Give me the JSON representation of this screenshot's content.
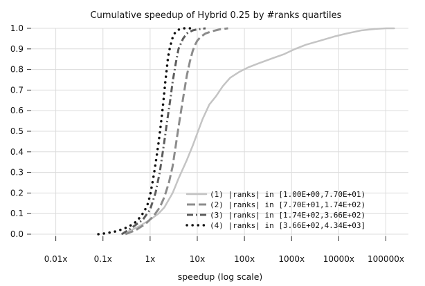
{
  "chart_data": {
    "type": "line",
    "title": "Cumulative speedup of Hybrid 0.25 by #ranks quartiles",
    "xlabel": "speedup (log scale)",
    "ylabel": "",
    "xscale": "log",
    "xlim": [
      0.003,
      300000
    ],
    "ylim": [
      0,
      1.0
    ],
    "grid": true,
    "legend_position": "bottom-right",
    "x_ticks": [
      {
        "value": 0.01,
        "label": "0.01x"
      },
      {
        "value": 0.1,
        "label": "0.1x"
      },
      {
        "value": 1,
        "label": "1x"
      },
      {
        "value": 10,
        "label": "10x"
      },
      {
        "value": 100,
        "label": "100x"
      },
      {
        "value": 1000,
        "label": "1000x"
      },
      {
        "value": 10000,
        "label": "10000x"
      },
      {
        "value": 100000,
        "label": "100000x"
      }
    ],
    "y_ticks": [
      {
        "value": 0.0,
        "label": "0.0"
      },
      {
        "value": 0.1,
        "label": "0.1"
      },
      {
        "value": 0.2,
        "label": "0.2"
      },
      {
        "value": 0.3,
        "label": "0.3"
      },
      {
        "value": 0.4,
        "label": "0.4"
      },
      {
        "value": 0.5,
        "label": "0.5"
      },
      {
        "value": 0.6,
        "label": "0.6"
      },
      {
        "value": 0.7,
        "label": "0.7"
      },
      {
        "value": 0.8,
        "label": "0.8"
      },
      {
        "value": 0.9,
        "label": "0.9"
      },
      {
        "value": 1.0,
        "label": "1.0"
      }
    ],
    "series": [
      {
        "name": "(1) |ranks| in [1.00E+00,7.70E+01)",
        "style": "solid",
        "color": "#c4c4c4",
        "x": [
          0.25,
          0.4,
          0.6,
          1.0,
          1.5,
          2.0,
          3.0,
          4.0,
          6.0,
          8.0,
          10.0,
          13.0,
          18.0,
          25.0,
          35.0,
          50.0,
          80.0,
          120.0,
          200.0,
          400.0,
          700.0,
          1200.0,
          2000.0,
          4000.0,
          8000.0,
          15000.0,
          30000.0,
          60000.0,
          100000.0,
          150000.0
        ],
        "y": [
          0.0,
          0.02,
          0.04,
          0.07,
          0.1,
          0.13,
          0.2,
          0.27,
          0.36,
          0.43,
          0.49,
          0.56,
          0.63,
          0.67,
          0.72,
          0.76,
          0.79,
          0.81,
          0.83,
          0.855,
          0.875,
          0.9,
          0.92,
          0.94,
          0.96,
          0.975,
          0.99,
          0.997,
          1.0,
          1.0
        ]
      },
      {
        "name": "(2) |ranks| in [7.70E+01,1.74E+02)",
        "style": "dashed",
        "color": "#8c8c8c",
        "x": [
          0.3,
          0.5,
          0.8,
          1.2,
          1.6,
          2.0,
          2.5,
          3.0,
          3.5,
          4.0,
          5.0,
          6.0,
          7.0,
          8.0,
          9.0,
          10.0,
          12.0,
          15.0,
          20.0,
          30.0,
          45.0
        ],
        "y": [
          0.0,
          0.02,
          0.05,
          0.09,
          0.13,
          0.18,
          0.25,
          0.33,
          0.43,
          0.52,
          0.66,
          0.77,
          0.84,
          0.89,
          0.92,
          0.94,
          0.96,
          0.975,
          0.985,
          0.995,
          1.0
        ]
      },
      {
        "name": "(3) |ranks| in [1.74E+02,3.66E+02)",
        "style": "dashdot",
        "color": "#5c5c5c",
        "x": [
          0.25,
          0.4,
          0.7,
          1.0,
          1.3,
          1.6,
          2.0,
          2.3,
          2.7,
          3.0,
          3.5,
          4.0,
          5.0,
          6.0,
          8.0,
          10.0,
          15.0
        ],
        "y": [
          0.0,
          0.03,
          0.07,
          0.12,
          0.2,
          0.3,
          0.45,
          0.55,
          0.66,
          0.74,
          0.83,
          0.9,
          0.95,
          0.975,
          0.99,
          0.995,
          1.0
        ]
      },
      {
        "name": "(4) |ranks| in [3.66E+02,4.34E+03]",
        "style": "dotted",
        "color": "#111111",
        "x": [
          0.08,
          0.12,
          0.2,
          0.3,
          0.45,
          0.6,
          0.75,
          0.9,
          1.0,
          1.1,
          1.2,
          1.3,
          1.4,
          1.5,
          1.6,
          1.7,
          1.8,
          1.9,
          2.0,
          2.1,
          2.2,
          2.3,
          2.4,
          2.6,
          2.8,
          3.0,
          3.3,
          3.7,
          4.2,
          5.0,
          6.0,
          8.0
        ],
        "y": [
          0.0,
          0.005,
          0.015,
          0.03,
          0.05,
          0.08,
          0.11,
          0.15,
          0.19,
          0.24,
          0.29,
          0.34,
          0.39,
          0.44,
          0.49,
          0.54,
          0.59,
          0.64,
          0.69,
          0.74,
          0.78,
          0.82,
          0.86,
          0.9,
          0.93,
          0.955,
          0.975,
          0.99,
          0.995,
          1.0,
          1.0,
          1.0
        ]
      }
    ]
  }
}
